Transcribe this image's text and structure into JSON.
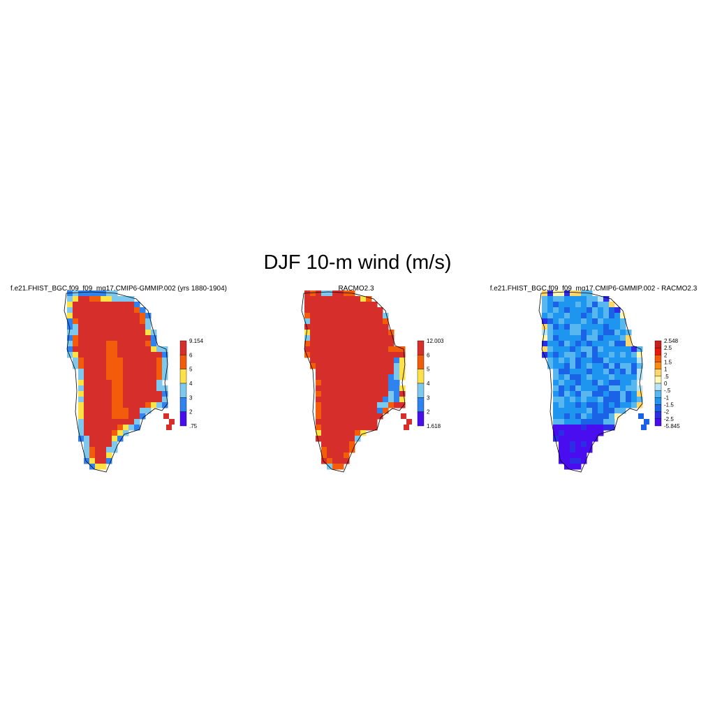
{
  "title": "DJF 10-m wind (m/s)",
  "panels": [
    {
      "title": "f.e21.FHIST_BGC.f09_f09_mg17.CMIP6-GMMIP.002 (yrs 1880-1904)",
      "colorbar": {
        "labels": [
          "9.154",
          "6",
          "5",
          "4",
          "3",
          "2",
          ".75"
        ],
        "colors": [
          "#d62e2a",
          "#f25c0a",
          "#fde147",
          "#7ec8ee",
          "#2e83ee",
          "#4a0df0"
        ]
      },
      "field": "model"
    },
    {
      "title": "RACMO2.3",
      "colorbar": {
        "labels": [
          "12.003",
          "6",
          "5",
          "4",
          "3",
          "2",
          "1.618"
        ],
        "colors": [
          "#d62e2a",
          "#f25c0a",
          "#fde147",
          "#7ec8ee",
          "#2e83ee",
          "#4a0df0"
        ]
      },
      "field": "obs"
    },
    {
      "title": "f.e21.FHIST_BGC.f09_f09_mg17.CMIP6-GMMIP.002 - RACMO2.3",
      "colorbar": {
        "labels": [
          "2.548",
          "2.5",
          "2",
          "1.5",
          "1",
          ".5",
          "0",
          "-.5",
          "-1",
          "-1.5",
          "-2",
          "-2.5",
          "-5.845"
        ],
        "colors": [
          "#c8201e",
          "#e8180e",
          "#f55a08",
          "#f88e10",
          "#fdd76a",
          "#fff9b4",
          "#b8e4f6",
          "#57b7ee",
          "#1e96f0",
          "#1a63e6",
          "#2c2de4",
          "#4a0df0"
        ]
      },
      "field": "diff"
    }
  ]
}
